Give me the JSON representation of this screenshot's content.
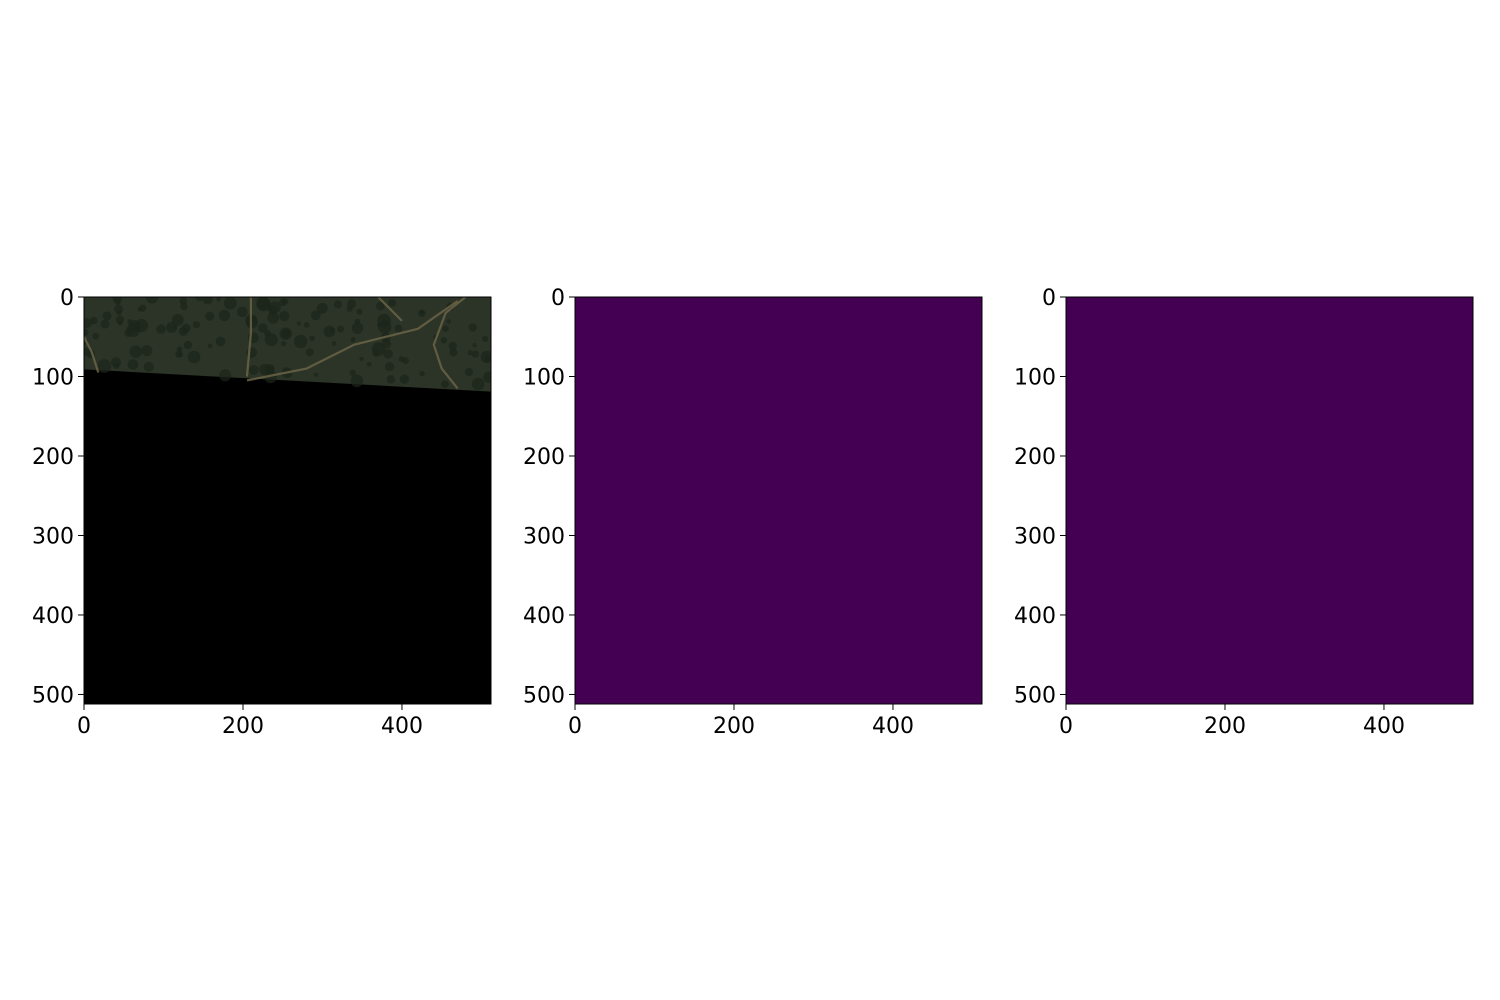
{
  "figure": {
    "background": "#ffffff"
  },
  "chart_data": [
    {
      "type": "heatmap",
      "content": "satellite image (RGB), upper band visible, lower region black",
      "xlim": [
        0,
        512
      ],
      "ylim": [
        512,
        0
      ],
      "y_inverted": true,
      "xticks": [
        0,
        200,
        400
      ],
      "yticks": [
        0,
        100,
        200,
        300,
        400,
        500
      ],
      "xtick_labels": [
        "0",
        "200",
        "400"
      ],
      "ytick_labels": [
        "0",
        "100",
        "200",
        "300",
        "400",
        "500"
      ],
      "valid_region_boundary": {
        "x": [
          0,
          512
        ],
        "y": [
          91,
          119
        ]
      },
      "colors": {
        "fill": "#000000",
        "imagery": "#2b3427",
        "path": "#6b6446"
      }
    },
    {
      "type": "heatmap",
      "content": "uniform mask",
      "xlim": [
        0,
        512
      ],
      "ylim": [
        512,
        0
      ],
      "y_inverted": true,
      "xticks": [
        0,
        200,
        400
      ],
      "yticks": [
        0,
        100,
        200,
        300,
        400,
        500
      ],
      "xtick_labels": [
        "0",
        "200",
        "400"
      ],
      "ytick_labels": [
        "0",
        "100",
        "200",
        "300",
        "400",
        "500"
      ],
      "value": 0,
      "colormap": "viridis",
      "colors": {
        "fill": "#440154"
      }
    },
    {
      "type": "heatmap",
      "content": "uniform mask",
      "xlim": [
        0,
        512
      ],
      "ylim": [
        512,
        0
      ],
      "y_inverted": true,
      "xticks": [
        0,
        200,
        400
      ],
      "yticks": [
        0,
        100,
        200,
        300,
        400,
        500
      ],
      "xtick_labels": [
        "0",
        "200",
        "400"
      ],
      "ytick_labels": [
        "0",
        "100",
        "200",
        "300",
        "400",
        "500"
      ],
      "value": 0,
      "colormap": "viridis",
      "colors": {
        "fill": "#440154"
      }
    }
  ]
}
